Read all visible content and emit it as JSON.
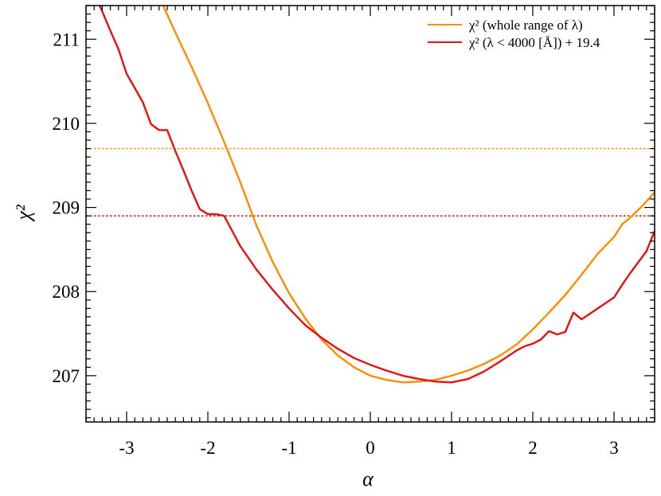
{
  "chart_data": {
    "type": "line",
    "xlabel": "α",
    "ylabel": "χ²",
    "xlim": [
      -3.5,
      3.5
    ],
    "ylim": [
      206.45,
      211.4
    ],
    "xticks": [
      -3,
      -2,
      -1,
      0,
      1,
      2,
      3
    ],
    "xtick_labels": [
      "-3",
      "-2",
      "-1",
      "0",
      "1",
      "2",
      "3"
    ],
    "yticks": [
      207,
      208,
      209,
      210,
      211
    ],
    "ytick_labels": [
      "207",
      "208",
      "209",
      "210",
      "211"
    ],
    "grid": false,
    "legend_position": "top-right",
    "series": [
      {
        "name": "χ² (whole range of λ)",
        "color": "#ff8c00",
        "x": [
          -2.55,
          -2.4,
          -2.2,
          -2.0,
          -1.8,
          -1.6,
          -1.4,
          -1.2,
          -1.0,
          -0.8,
          -0.6,
          -0.4,
          -0.2,
          0.0,
          0.2,
          0.4,
          0.6,
          0.8,
          1.0,
          1.2,
          1.4,
          1.6,
          1.8,
          2.0,
          2.2,
          2.4,
          2.6,
          2.8,
          3.0,
          3.1,
          3.2,
          3.35,
          3.5
        ],
        "y": [
          211.4,
          211.08,
          210.67,
          210.24,
          209.78,
          209.3,
          208.78,
          208.35,
          207.98,
          207.68,
          207.43,
          207.24,
          207.1,
          207.0,
          206.95,
          206.92,
          206.93,
          206.95,
          207.0,
          207.06,
          207.14,
          207.24,
          207.37,
          207.55,
          207.75,
          207.96,
          208.2,
          208.45,
          208.65,
          208.8,
          208.88,
          209.02,
          209.18
        ]
      },
      {
        "name": "χ² (λ < 4000 [Å]) + 19.4",
        "color": "#e81010",
        "x": [
          -3.33,
          -3.2,
          -3.1,
          -3.0,
          -2.9,
          -2.8,
          -2.7,
          -2.6,
          -2.5,
          -2.4,
          -2.3,
          -2.2,
          -2.1,
          -2.0,
          -1.9,
          -1.8,
          -1.6,
          -1.4,
          -1.2,
          -1.0,
          -0.8,
          -0.6,
          -0.4,
          -0.2,
          0.0,
          0.2,
          0.4,
          0.6,
          0.8,
          1.0,
          1.2,
          1.4,
          1.6,
          1.8,
          1.9,
          2.0,
          2.1,
          2.2,
          2.3,
          2.4,
          2.5,
          2.6,
          2.8,
          3.0,
          3.1,
          3.2,
          3.3,
          3.4,
          3.5
        ],
        "y": [
          211.4,
          211.1,
          210.88,
          210.59,
          210.42,
          210.25,
          209.99,
          209.92,
          209.92,
          209.67,
          209.44,
          209.2,
          208.98,
          208.92,
          208.92,
          208.9,
          208.54,
          208.26,
          208.02,
          207.8,
          207.6,
          207.45,
          207.32,
          207.21,
          207.13,
          207.06,
          207.0,
          206.96,
          206.93,
          206.92,
          206.96,
          207.05,
          207.17,
          207.3,
          207.35,
          207.38,
          207.43,
          207.53,
          207.49,
          207.52,
          207.75,
          207.67,
          207.8,
          207.93,
          208.08,
          208.22,
          208.35,
          208.48,
          208.72
        ]
      }
    ],
    "hlines": [
      {
        "y": 209.7,
        "color": "#ff8c00",
        "style": "dotted"
      },
      {
        "y": 208.9,
        "color": "#e81010",
        "style": "dotted"
      }
    ]
  }
}
